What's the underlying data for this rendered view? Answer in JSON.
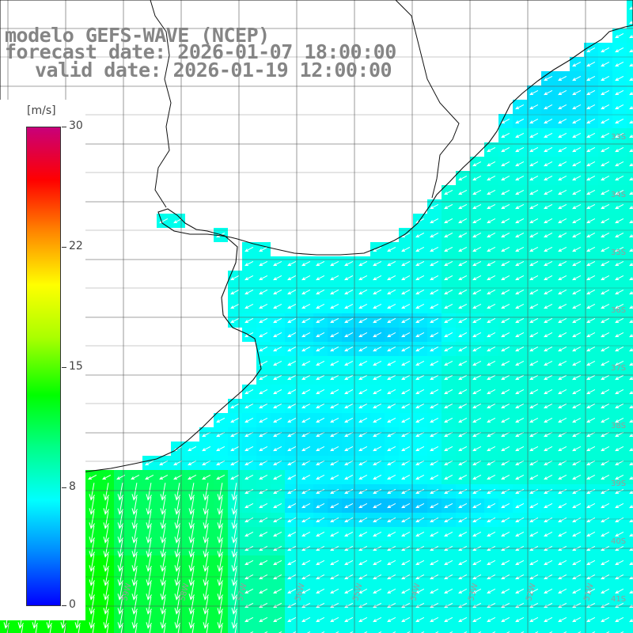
{
  "title": {
    "line1": "modelo GEFS-WAVE (NCEP)",
    "line2": "forecast date: 2026-01-07 18:00:00",
    "line3": "valid date: 2026-01-19 12:00:00"
  },
  "colorbar": {
    "unit": "[m/s]",
    "range": [
      0,
      30
    ],
    "ticks": [
      "30",
      "22",
      "15",
      "8",
      "0"
    ],
    "tick_values": [
      30,
      22,
      15,
      8,
      0
    ],
    "colors_low_to_high": [
      "#0000ff",
      "#0088ff",
      "#00ffff",
      "#00ff88",
      "#00ff00",
      "#aaff00",
      "#ffff00",
      "#ff8800",
      "#ff0000",
      "#c8007a"
    ]
  },
  "map": {
    "lon_labels": [
      "61W",
      "60W",
      "59W",
      "58W",
      "57W",
      "56W",
      "55W",
      "54W",
      "53W",
      "52W",
      "51W"
    ],
    "lat_labels": [
      "33S",
      "34S",
      "35S",
      "36S",
      "37S",
      "38S",
      "39S",
      "40S",
      "41S"
    ],
    "wind_field": {
      "variable": "wind speed and direction",
      "units": "m/s",
      "predominant_direction": "from NE (arrows pointing SW)",
      "southwest_region_speed_range": [
        10,
        13
      ],
      "central_region_speed_range": [
        5,
        7
      ],
      "east_region_speed_range": [
        7,
        8
      ]
    }
  }
}
